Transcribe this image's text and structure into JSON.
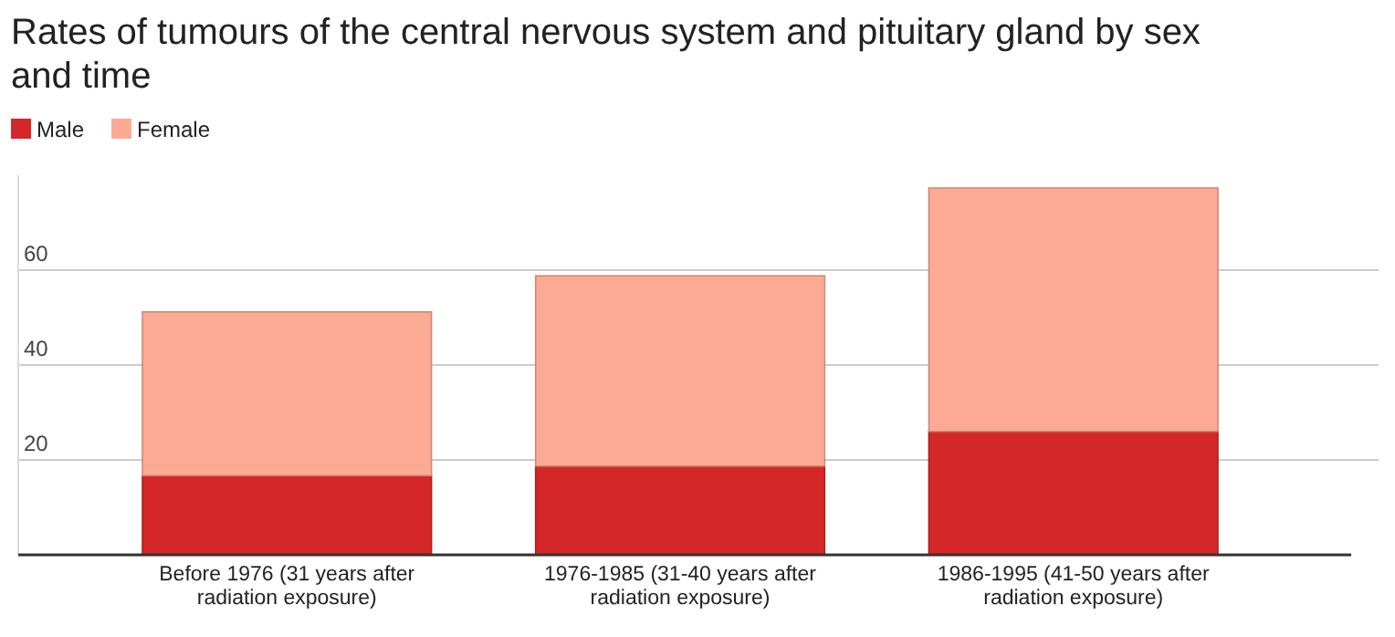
{
  "chart_data": {
    "type": "bar",
    "title": "Rates of tumours of the central nervous system and pituitary gland by sex and time",
    "categories": [
      "Before 1976 (31 years after radiation exposure)",
      "1976-1985 (31-40 years after radiation exposure)",
      "1986-1995 (41-50 years after radiation exposure)"
    ],
    "series": [
      {
        "name": "Male",
        "color": "#d62728",
        "values": [
          16.7,
          18.7,
          26.0
        ]
      },
      {
        "name": "Female",
        "color": "#fcaa93",
        "values": [
          34.5,
          40.1,
          51.3
        ]
      }
    ],
    "stacked": true,
    "ylim": [
      0,
      80
    ],
    "yticks": [
      20,
      40,
      60
    ],
    "grid": "y",
    "legend": "top left"
  }
}
